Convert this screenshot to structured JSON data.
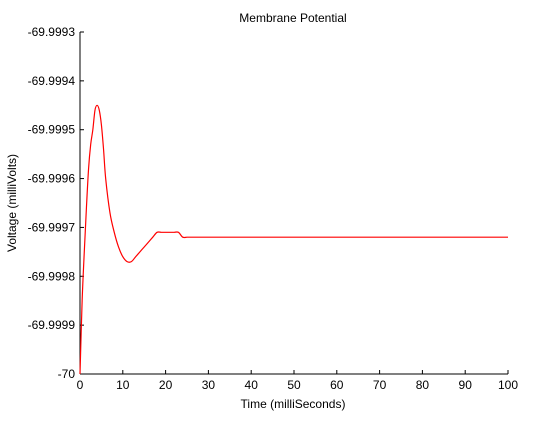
{
  "chart_data": {
    "type": "line",
    "title": "Membrane Potential",
    "xlabel": "Time (milliSeconds)",
    "ylabel": "Voltage (milliVolts)",
    "xlim": [
      0,
      100
    ],
    "ylim": [
      -70,
      -69.9993
    ],
    "x_ticks": [
      0,
      10,
      20,
      30,
      40,
      50,
      60,
      70,
      80,
      90,
      100
    ],
    "x_tick_labels": [
      "0",
      "10",
      "20",
      "30",
      "40",
      "50",
      "60",
      "70",
      "80",
      "90",
      "100"
    ],
    "y_ticks": [
      -70,
      -69.9999,
      -69.9998,
      -69.9997,
      -69.9996,
      -69.9995,
      -69.9994,
      -69.9993
    ],
    "y_tick_labels": [
      "-70",
      "-69.9999",
      "-69.9998",
      "-69.9997",
      "-69.9996",
      "-69.9995",
      "-69.9994",
      "-69.9993"
    ],
    "grid": false,
    "legend": "none",
    "series": [
      {
        "color": "#ff0000",
        "x": [
          0,
          0.5,
          1,
          1.5,
          2,
          2.5,
          3,
          3.5,
          4,
          4.5,
          5,
          5.5,
          6,
          7,
          8,
          9,
          10,
          11,
          12,
          13,
          14,
          15,
          16,
          17,
          18,
          19,
          20,
          21,
          22,
          23,
          24,
          25,
          26,
          27,
          28,
          29,
          30,
          32,
          35,
          40,
          50,
          60,
          70,
          80,
          90,
          100
        ],
        "y": [
          -70,
          -69.99985,
          -69.99975,
          -69.99966,
          -69.99958,
          -69.99953,
          -69.9995,
          -69.99946,
          -69.99945,
          -69.99946,
          -69.99949,
          -69.99954,
          -69.9996,
          -69.99967,
          -69.99971,
          -69.99974,
          -69.99976,
          -69.99977,
          -69.99977,
          -69.99976,
          -69.99975,
          -69.99974,
          -69.99973,
          -69.99972,
          -69.99971,
          -69.99971,
          -69.99971,
          -69.99971,
          -69.99971,
          -69.99971,
          -69.99972,
          -69.99972,
          -69.99972,
          -69.99972,
          -69.99972,
          -69.99972,
          -69.99972,
          -69.99972,
          -69.99972,
          -69.99972,
          -69.99972,
          -69.99972,
          -69.99972,
          -69.99972,
          -69.99972,
          -69.99972
        ]
      }
    ]
  }
}
